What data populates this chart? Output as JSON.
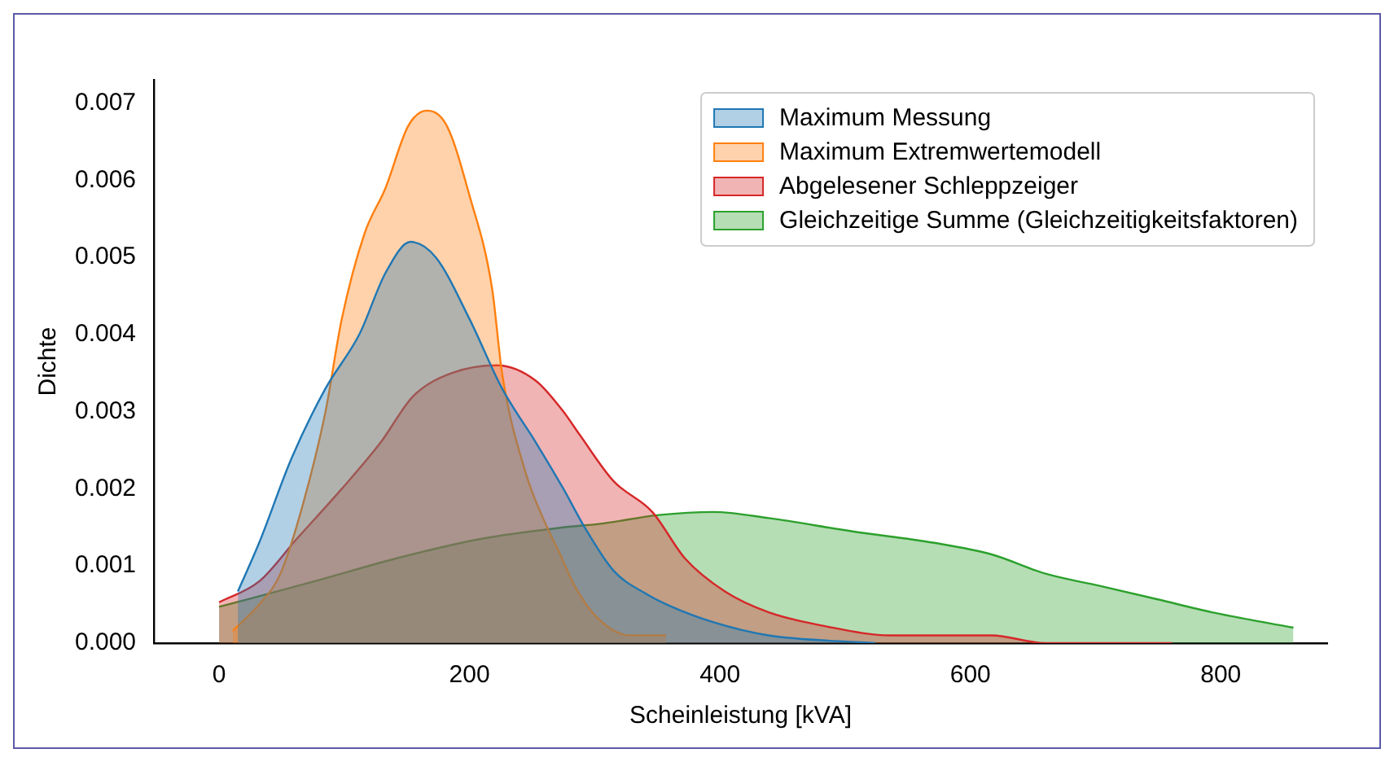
{
  "chart_data": {
    "type": "area",
    "xlabel": "Scheinleistung [kVA]",
    "ylabel": "Dichte",
    "xlim": [
      -52,
      885
    ],
    "ylim": [
      0,
      0.0073
    ],
    "xticks": [
      0,
      200,
      400,
      600,
      800
    ],
    "yticks": [
      {
        "value": 0,
        "label": "0.000"
      },
      {
        "value": 0.001,
        "label": "0.001"
      },
      {
        "value": 0.002,
        "label": "0.002"
      },
      {
        "value": 0.003,
        "label": "0.003"
      },
      {
        "value": 0.004,
        "label": "0.004"
      },
      {
        "value": 0.005,
        "label": "0.005"
      },
      {
        "value": 0.006,
        "label": "0.006"
      },
      {
        "value": 0.007,
        "label": "0.007"
      }
    ],
    "grid": false,
    "legend": "top right",
    "marker": "none",
    "line_style": "solid",
    "series": [
      {
        "name": "Maximum Messung",
        "color": "#1f77b4",
        "x": [
          15,
          32,
          58,
          85,
          112,
          133,
          153,
          173,
          200,
          226,
          253,
          275,
          292,
          315,
          342,
          359,
          395,
          439,
          524
        ],
        "values": [
          0.00067,
          0.0013,
          0.0024,
          0.0033,
          0.004,
          0.0048,
          0.0052,
          0.005,
          0.0042,
          0.0033,
          0.0026,
          0.002,
          0.0015,
          0.00094,
          0.00063,
          0.00049,
          0.00027,
          0.0001,
          0
        ]
      },
      {
        "name": "Maximum Extremwertemodell",
        "color": "#ff7f0e",
        "x": [
          11,
          32,
          49,
          67,
          85,
          98,
          116,
          133,
          151,
          166,
          182,
          200,
          218,
          226,
          245,
          262,
          271,
          284,
          302,
          328,
          357
        ],
        "values": [
          0.00016,
          0.0005,
          0.0009,
          0.0018,
          0.003,
          0.0042,
          0.0053,
          0.0059,
          0.0067,
          0.0069,
          0.0067,
          0.0058,
          0.0046,
          0.0035,
          0.0022,
          0.0015,
          0.0012,
          0.00074,
          0.00033,
          0.0001,
          0.0001
        ]
      },
      {
        "name": "Abgelesener Schleppzeiger",
        "color": "#d62728",
        "x": [
          0,
          32,
          62,
          98,
          129,
          155,
          186,
          222,
          253,
          275,
          288,
          315,
          346,
          372,
          404,
          439,
          484,
          537,
          617,
          660,
          707,
          761
        ],
        "values": [
          0.00053,
          0.0008,
          0.00135,
          0.002,
          0.0026,
          0.0032,
          0.0035,
          0.0036,
          0.0034,
          0.003,
          0.0027,
          0.0021,
          0.0017,
          0.0011,
          0.00067,
          0.0004,
          0.00022,
          0.0001,
          0.0001,
          0,
          0,
          0
        ]
      },
      {
        "name": "Gleichzeitige Summe (Gleichzeitigkeitsfaktoren)",
        "color": "#2ca02c",
        "x": [
          0,
          76,
          142,
          209,
          275,
          306,
          351,
          395,
          439,
          505,
          571,
          617,
          660,
          704,
          749,
          793,
          858
        ],
        "values": [
          0.00047,
          0.0008,
          0.0011,
          0.00135,
          0.0015,
          0.00155,
          0.00166,
          0.0017,
          0.00162,
          0.00145,
          0.0013,
          0.00115,
          0.0009,
          0.00074,
          0.00057,
          0.0004,
          0.0002
        ]
      }
    ]
  }
}
